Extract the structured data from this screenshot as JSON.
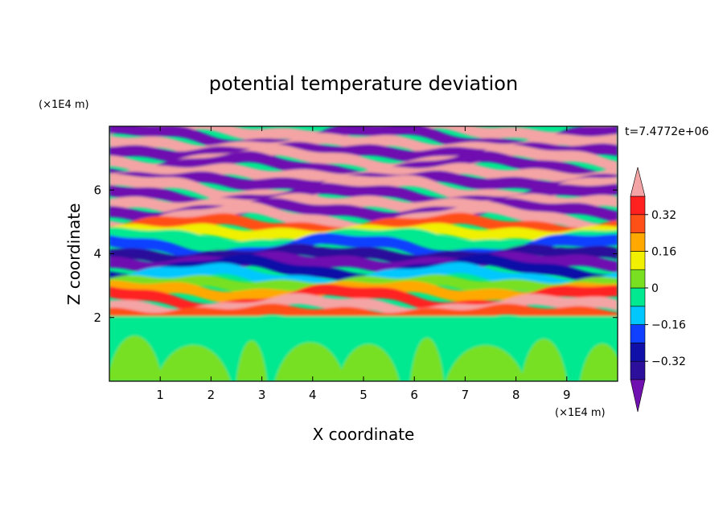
{
  "chart_data": {
    "type": "heatmap",
    "title": "potential temperature deviation",
    "time_label": "t=7.4772e+06",
    "xlabel": "X coordinate",
    "ylabel": "Z coordinate",
    "x_unit": "(×1E4 m)",
    "z_unit": "(×1E4 m)",
    "xlim": [
      0,
      10
    ],
    "zlim": [
      0,
      8
    ],
    "x_ticks": [
      {
        "value": 1,
        "label": "1"
      },
      {
        "value": 2,
        "label": "2"
      },
      {
        "value": 3,
        "label": "3"
      },
      {
        "value": 4,
        "label": "4"
      },
      {
        "value": 5,
        "label": "5"
      },
      {
        "value": 6,
        "label": "6"
      },
      {
        "value": 7,
        "label": "7"
      },
      {
        "value": 8,
        "label": "8"
      },
      {
        "value": 9,
        "label": "9"
      }
    ],
    "z_ticks": [
      {
        "value": 2,
        "label": "2"
      },
      {
        "value": 4,
        "label": "4"
      },
      {
        "value": 6,
        "label": "6"
      }
    ],
    "colorbar": {
      "levels": [
        -0.4,
        -0.32,
        -0.24,
        -0.16,
        -0.08,
        0,
        0.08,
        0.16,
        0.24,
        0.32,
        0.4
      ],
      "colors": [
        "#2c0f9a",
        "#1010a8",
        "#1040ff",
        "#00c8ff",
        "#00e890",
        "#78e020",
        "#f0f000",
        "#ffa800",
        "#ff5018",
        "#ff2020"
      ],
      "under_color": "#7010b0",
      "over_color": "#f4a4a4",
      "labels": [
        {
          "value": 0.32,
          "label": "0.32"
        },
        {
          "value": 0.16,
          "label": "0.16"
        },
        {
          "value": 0,
          "label": "0"
        },
        {
          "value": -0.16,
          "label": "−0.16"
        },
        {
          "value": -0.32,
          "label": "−0.32"
        }
      ]
    }
  }
}
